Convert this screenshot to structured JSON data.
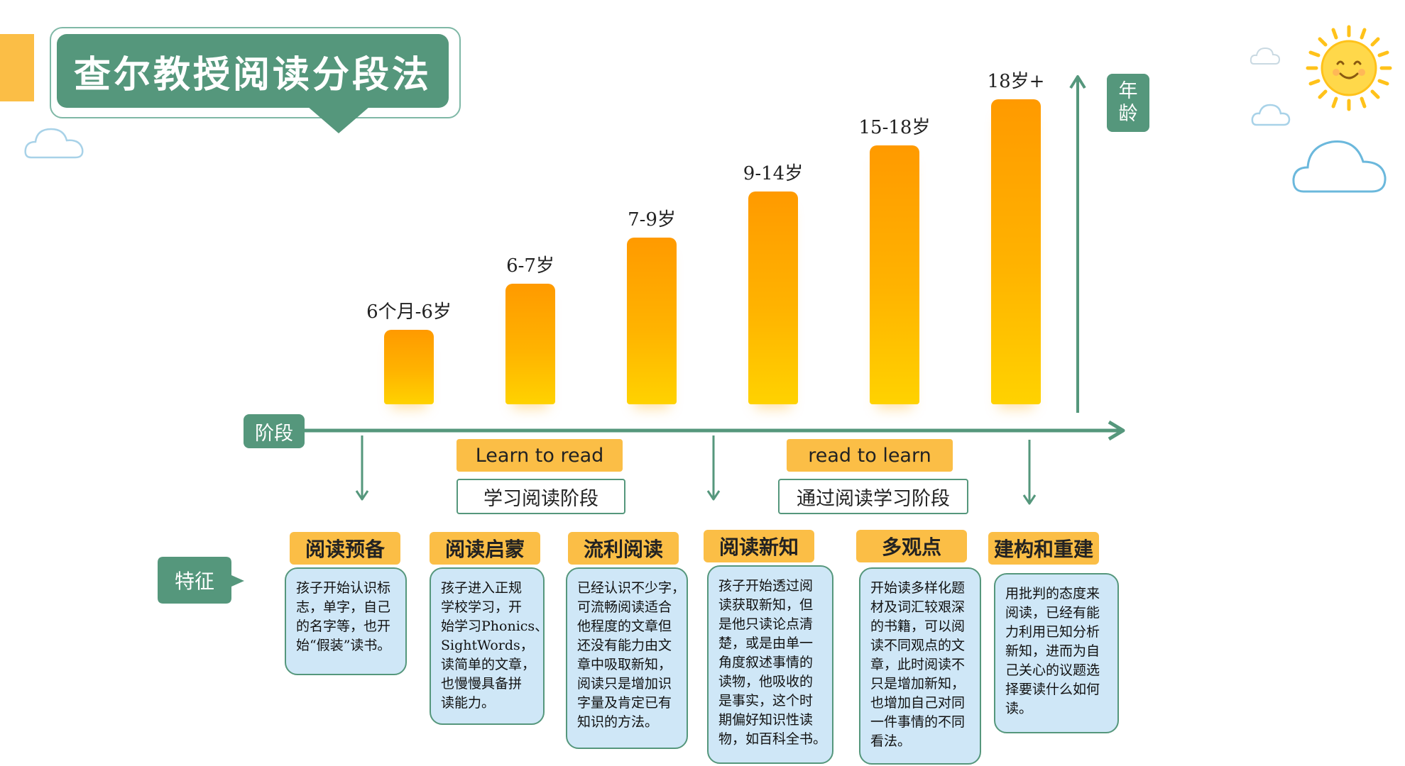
{
  "title": "查尔教授阅读分段法",
  "axis": {
    "stage_label": "阶段",
    "age_label_line1": "年",
    "age_label_line2": "龄"
  },
  "colors": {
    "green": "#55977c",
    "orange": "#fbbe46",
    "card_bg": "#cfe7f7",
    "bar_top": "#ff9a00",
    "bar_bottom": "#ffd200"
  },
  "chart_data": {
    "type": "bar",
    "categories": [
      "6个月-6岁",
      "6-7岁",
      "7-9岁",
      "9-14岁",
      "15-18岁",
      "18岁+"
    ],
    "values": [
      1,
      2,
      3,
      4,
      5,
      6
    ],
    "xlabel": "阶段",
    "ylabel": "年龄"
  },
  "phases": [
    {
      "english": "Learn to read",
      "chinese": "学习阅读阶段"
    },
    {
      "english": "read to learn",
      "chinese": "通过阅读学习阶段"
    }
  ],
  "feature_label": "特征",
  "features": [
    {
      "title": "阅读预备",
      "lines": [
        "孩子开始认识标",
        "志，单字，自己",
        "的名字等，也开",
        "始“假装”读书。"
      ]
    },
    {
      "title": "阅读启蒙",
      "lines": [
        "孩子进入正规",
        "学校学习，开",
        "始学习Phonics、",
        "SightWords，",
        "读简单的文章，",
        "也慢慢具备拼",
        "读能力。"
      ]
    },
    {
      "title": "流利阅读",
      "lines": [
        "已经认识不少字，",
        "可流畅阅读适合",
        "他程度的文章但",
        "还没有能力由文",
        "章中吸取新知，",
        "阅读只是增加识",
        "字量及肯定已有",
        "知识的方法。"
      ]
    },
    {
      "title": "阅读新知",
      "lines": [
        "孩子开始透过阅",
        "读获取新知，但",
        "是他只读论点清",
        "楚，或是由单一",
        "角度叙述事情的",
        "读物，他吸收的",
        "是事实，这个时",
        "期偏好知识性读",
        "物，如百科全书。"
      ]
    },
    {
      "title": "多观点",
      "lines": [
        "开始读多样化题",
        "材及词汇较艰深",
        "的书籍，可以阅",
        "读不同观点的文",
        "章，此时阅读不",
        "只是增加新知，",
        "也增加自己对同",
        "一件事情的不同",
        "看法。"
      ]
    },
    {
      "title": "建构和重建",
      "lines": [
        "用批判的态度来",
        "阅读，已经有能",
        "力利用已知分析",
        "新知，进而为自",
        "己关心的议题选",
        "择要读什么如何",
        "读。"
      ]
    }
  ]
}
